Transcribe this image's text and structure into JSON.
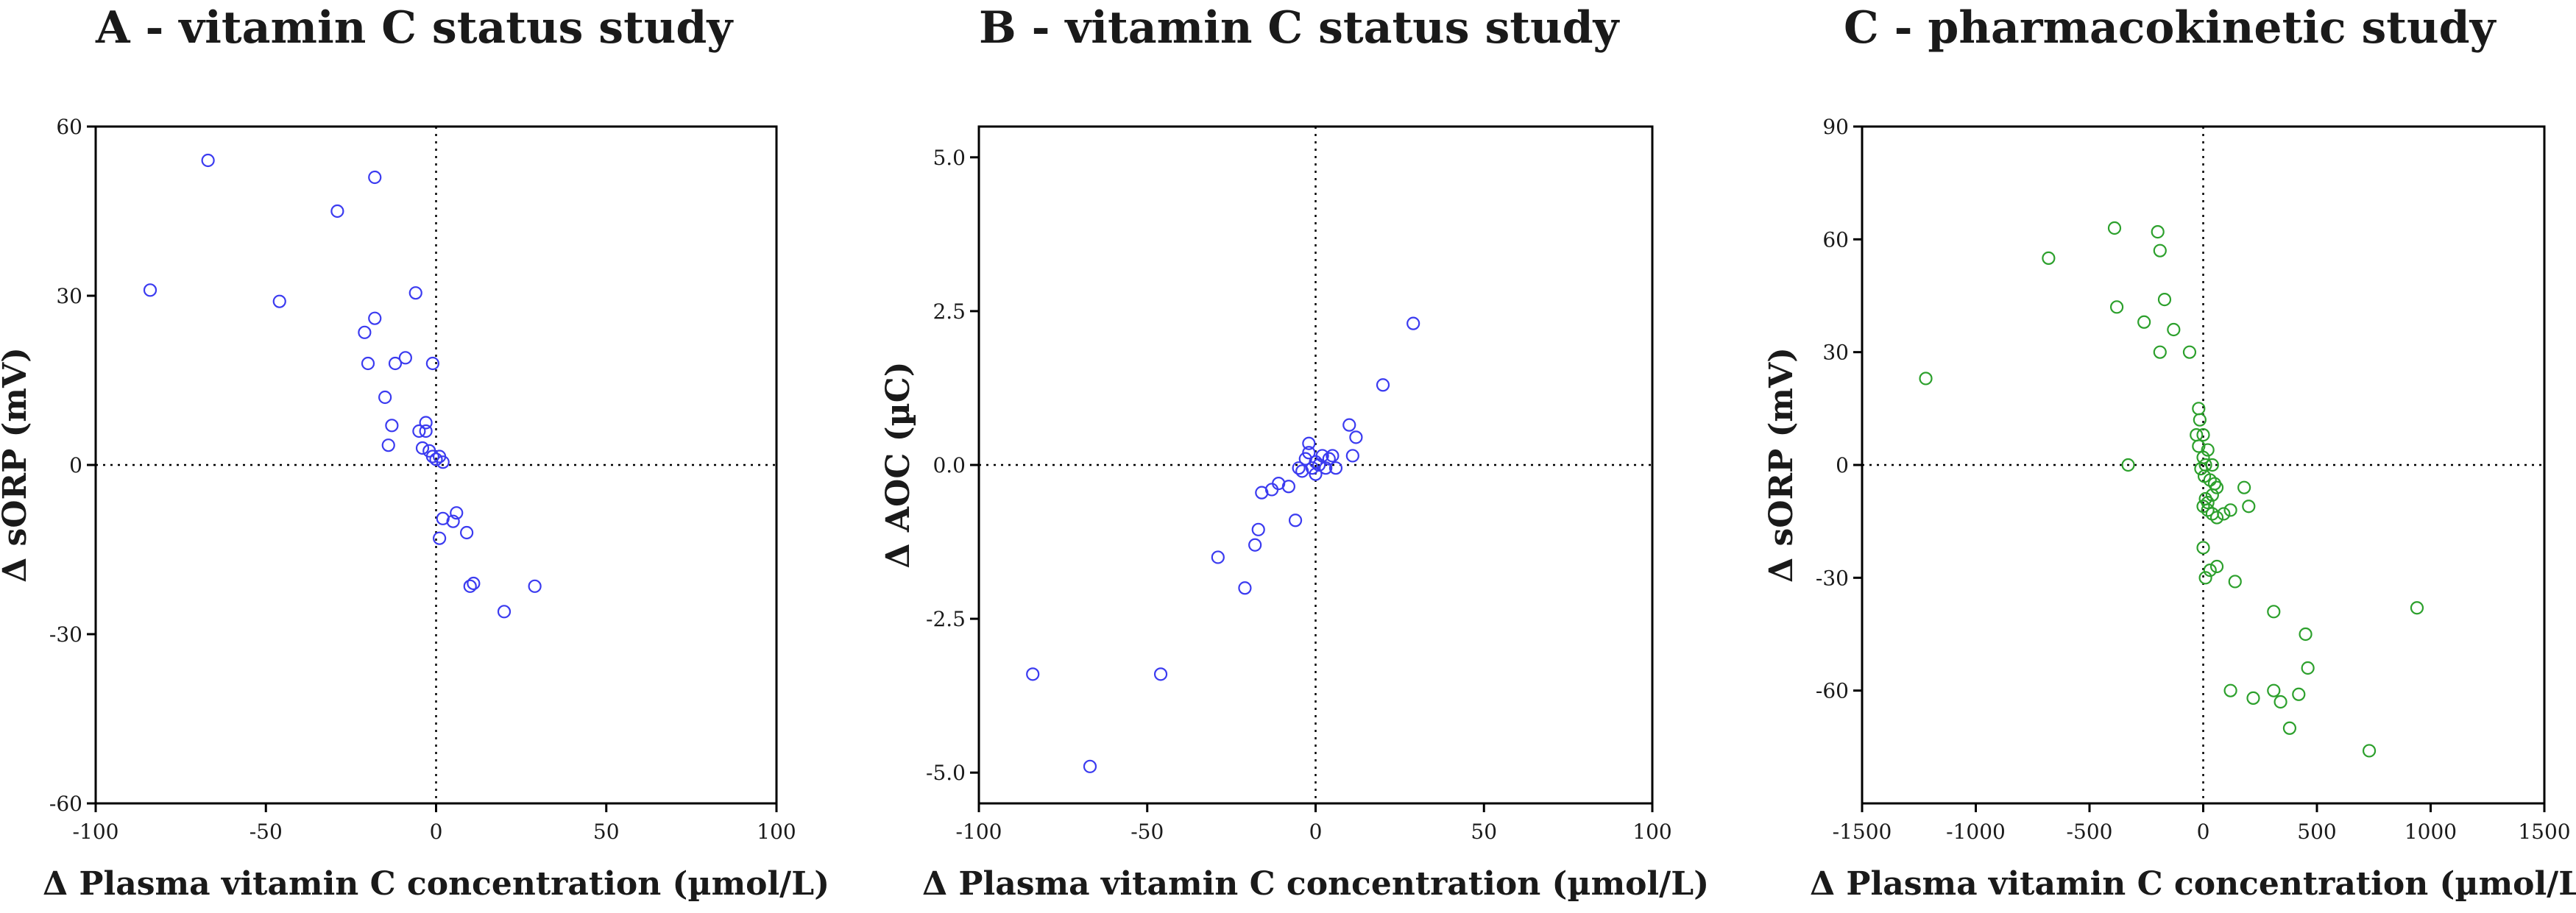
{
  "chart_data": [
    {
      "type": "scatter",
      "title": "A - vitamin C status study",
      "xlabel": "Δ Plasma vitamin C concentration (µmol/L)",
      "ylabel": "Δ sORP (mV)",
      "xlim": [
        -100,
        100
      ],
      "ylim": [
        -60,
        60
      ],
      "xticks": [
        -100,
        -50,
        0,
        50,
        100
      ],
      "yticks": [
        -60,
        -30,
        0,
        30,
        60
      ],
      "ytick_labels": [
        "-60",
        "-30",
        "0",
        "30",
        "60"
      ],
      "color": "#3b3bf0",
      "grid": false,
      "series": [
        {
          "name": "A",
          "x": [
            -84,
            -67,
            -46,
            -29,
            -18,
            -20,
            -18,
            -21,
            -15,
            -12,
            -9,
            -13,
            -14,
            -6,
            -5,
            -3,
            -1,
            -2,
            -4,
            -3,
            -1,
            1,
            0,
            2,
            1,
            2,
            5,
            6,
            9,
            11,
            10,
            20,
            29
          ],
          "y": [
            31,
            54,
            29,
            45,
            51,
            18,
            26,
            23.5,
            12,
            18,
            19,
            7,
            3.5,
            30.5,
            6,
            7.5,
            18,
            2.5,
            3,
            6,
            1.5,
            1.5,
            1,
            0.5,
            -13,
            -9.5,
            -10,
            -8.5,
            -12,
            -21,
            -21.5,
            -26,
            -21.5
          ]
        }
      ]
    },
    {
      "type": "scatter",
      "title": "B - vitamin C status study",
      "xlabel": "Δ Plasma vitamin C concentration (µmol/L)",
      "ylabel": "Δ AOC (µC)",
      "xlim": [
        -100,
        100
      ],
      "ylim": [
        -5.5,
        5.5
      ],
      "xticks": [
        -100,
        -50,
        0,
        50,
        100
      ],
      "yticks": [
        -5,
        -2.5,
        0,
        2.5,
        5
      ],
      "ytick_labels": [
        "-5.0",
        "-2.5",
        "0.0",
        "2.5",
        "5.0"
      ],
      "color": "#3b3bf0",
      "grid": false,
      "series": [
        {
          "name": "B",
          "x": [
            -84,
            -67,
            -46,
            -29,
            -21,
            -18,
            -17,
            -16,
            -13,
            -11,
            -8,
            -6,
            -5,
            -4,
            -3,
            -2,
            -2,
            -1,
            0,
            0,
            1,
            2,
            3,
            4,
            5,
            6,
            10,
            11,
            12,
            20,
            29
          ],
          "y": [
            -3.4,
            -4.9,
            -3.4,
            -1.5,
            -2.0,
            -1.3,
            -1.05,
            -0.45,
            -0.4,
            -0.3,
            -0.35,
            -0.9,
            -0.05,
            -0.1,
            0.1,
            0.35,
            0.2,
            -0.05,
            -0.15,
            0.05,
            0.0,
            0.15,
            -0.05,
            0.1,
            0.15,
            -0.05,
            0.65,
            0.15,
            0.45,
            1.3,
            2.3
          ]
        }
      ]
    },
    {
      "type": "scatter",
      "title": "C - pharmacokinetic study",
      "xlabel": "Δ Plasma vitamin C concentration (µmol/L)",
      "ylabel": "Δ sORP (mV)",
      "xlim": [
        -1500,
        1500
      ],
      "ylim": [
        -90,
        90
      ],
      "xticks": [
        -1500,
        -1000,
        -500,
        0,
        500,
        1000,
        1500
      ],
      "yticks": [
        -60,
        -30,
        0,
        30,
        60,
        90
      ],
      "ytick_labels": [
        "-60",
        "-30",
        "0",
        "30",
        "60",
        "90"
      ],
      "color": "#2ca02c",
      "grid": false,
      "series": [
        {
          "name": "C",
          "x": [
            -1220,
            -680,
            -390,
            -330,
            -380,
            -260,
            -200,
            -190,
            -170,
            -130,
            -60,
            -190,
            -20,
            -15,
            0,
            -30,
            -20,
            20,
            0,
            10,
            40,
            -10,
            5,
            30,
            50,
            60,
            40,
            10,
            20,
            0,
            20,
            40,
            60,
            0,
            30,
            10,
            60,
            90,
            120,
            140,
            180,
            200,
            310,
            340,
            380,
            450,
            460,
            310,
            420,
            220,
            120,
            940,
            730
          ],
          "y": [
            23,
            55,
            63,
            0,
            42,
            38,
            62,
            57,
            44,
            36,
            30,
            30,
            15,
            12,
            8,
            8,
            5,
            4,
            2,
            0,
            0,
            -1,
            -3,
            -4,
            -5,
            -6,
            -8,
            -9,
            -10,
            -11,
            -12,
            -13,
            -14,
            -22,
            -28,
            -30,
            -27,
            -13,
            -12,
            -31,
            -6,
            -11,
            -39,
            -63,
            -70,
            -45,
            -54,
            -60,
            -61,
            -62,
            -60,
            -38,
            -76
          ]
        }
      ]
    }
  ]
}
